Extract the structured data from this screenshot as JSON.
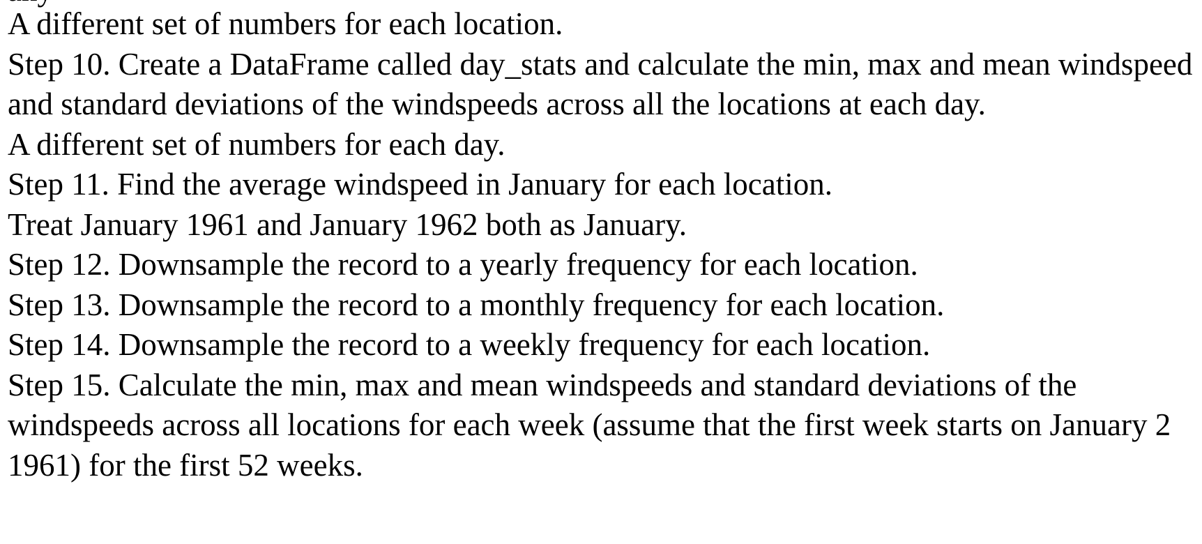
{
  "document": {
    "clipped_top_line": "any",
    "paragraphs": [
      "A different set of numbers for each location.",
      "Step 10. Create a DataFrame called day_stats and calculate the min, max and mean windspeed and standard deviations of the windspeeds across all the locations at each day.",
      "A different set of numbers for each day.",
      "Step 11. Find the average windspeed in January for each location.",
      "Treat January 1961 and January 1962 both as January.",
      "Step 12. Downsample the record to a yearly frequency for each location.",
      "Step 13. Downsample the record to a monthly frequency for each location.",
      "Step 14. Downsample the record to a weekly frequency for each location.",
      "Step 15. Calculate the min, max and mean windspeeds and standard deviations of the windspeeds across all locations for each week (assume that the first week starts on January 2 1961) for the first 52 weeks."
    ]
  }
}
